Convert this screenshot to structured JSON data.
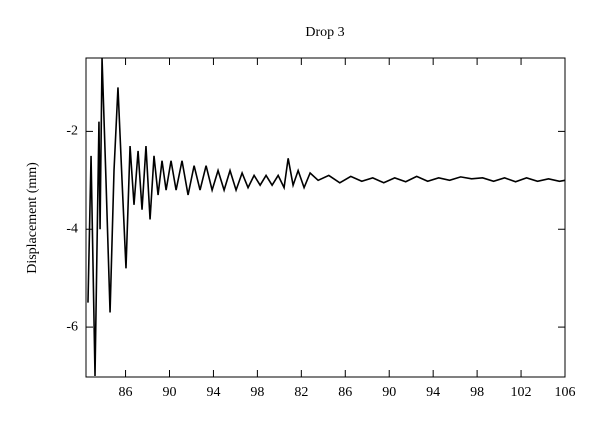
{
  "chart_data": {
    "type": "line",
    "title": "Drop 3",
    "y_label": "Displacement (mm)",
    "x": [
      82.58,
      82.86,
      83.22,
      83.58,
      83.68,
      83.86,
      84.22,
      84.59,
      84.95,
      85.31,
      85.68,
      86.04,
      86.41,
      86.77,
      87.14,
      87.5,
      87.86,
      88.23,
      88.59,
      88.96,
      89.32,
      89.69,
      90.14,
      90.6,
      91.14,
      91.69,
      92.24,
      92.78,
      93.33,
      93.88,
      94.42,
      94.97,
      95.51,
      96.06,
      96.61,
      97.15,
      97.7,
      98.25,
      98.79,
      99.34,
      99.89,
      100.43,
      100.8,
      101.25,
      101.71,
      102.25,
      102.8,
      103.53,
      104.5,
      105.5,
      106.5,
      107.5,
      108.5,
      109.5,
      110.5,
      111.5,
      112.5,
      113.5,
      114.5,
      115.5,
      116.5,
      117.5,
      118.5,
      119.5,
      120.5,
      121.5,
      122.5,
      123.5,
      124.5,
      125.5,
      126
    ],
    "series": [
      {
        "color": "#000000",
        "values": [
          -5.5,
          -2.5,
          -7.0,
          -1.8,
          -4.0,
          -0.5,
          -3.0,
          -5.7,
          -2.8,
          -1.1,
          -3.0,
          -4.8,
          -2.3,
          -3.5,
          -2.4,
          -3.6,
          -2.3,
          -3.8,
          -2.5,
          -3.3,
          -2.6,
          -3.2,
          -2.6,
          -3.2,
          -2.6,
          -3.3,
          -2.7,
          -3.2,
          -2.7,
          -3.2,
          -2.8,
          -3.2,
          -2.8,
          -3.2,
          -2.85,
          -3.15,
          -2.9,
          -3.1,
          -2.9,
          -3.1,
          -2.9,
          -3.15,
          -2.55,
          -3.1,
          -2.8,
          -3.15,
          -2.85,
          -3.0,
          -2.9,
          -3.05,
          -2.92,
          -3.02,
          -2.95,
          -3.05,
          -2.95,
          -3.03,
          -2.92,
          -3.02,
          -2.95,
          -3.0,
          -2.93,
          -2.97,
          -2.95,
          -3.02,
          -2.95,
          -3.03,
          -2.95,
          -3.02,
          -2.97,
          -3.02,
          -3.0
        ]
      }
    ],
    "xlim": [
      82.4,
      126
    ],
    "xticks": [
      86,
      90,
      94,
      98,
      {
        "value": 102,
        "label": "82"
      },
      {
        "value": 106,
        "label": "86"
      },
      {
        "value": 110,
        "label": "90"
      },
      {
        "value": 114,
        "label": "94"
      },
      {
        "value": 118,
        "label": "98"
      },
      {
        "value": 122,
        "label": "102"
      },
      {
        "value": 126,
        "label": "106"
      }
    ],
    "ylim": [
      -7.02,
      -0.5
    ],
    "yticks": [
      -2,
      -4,
      -6
    ]
  }
}
